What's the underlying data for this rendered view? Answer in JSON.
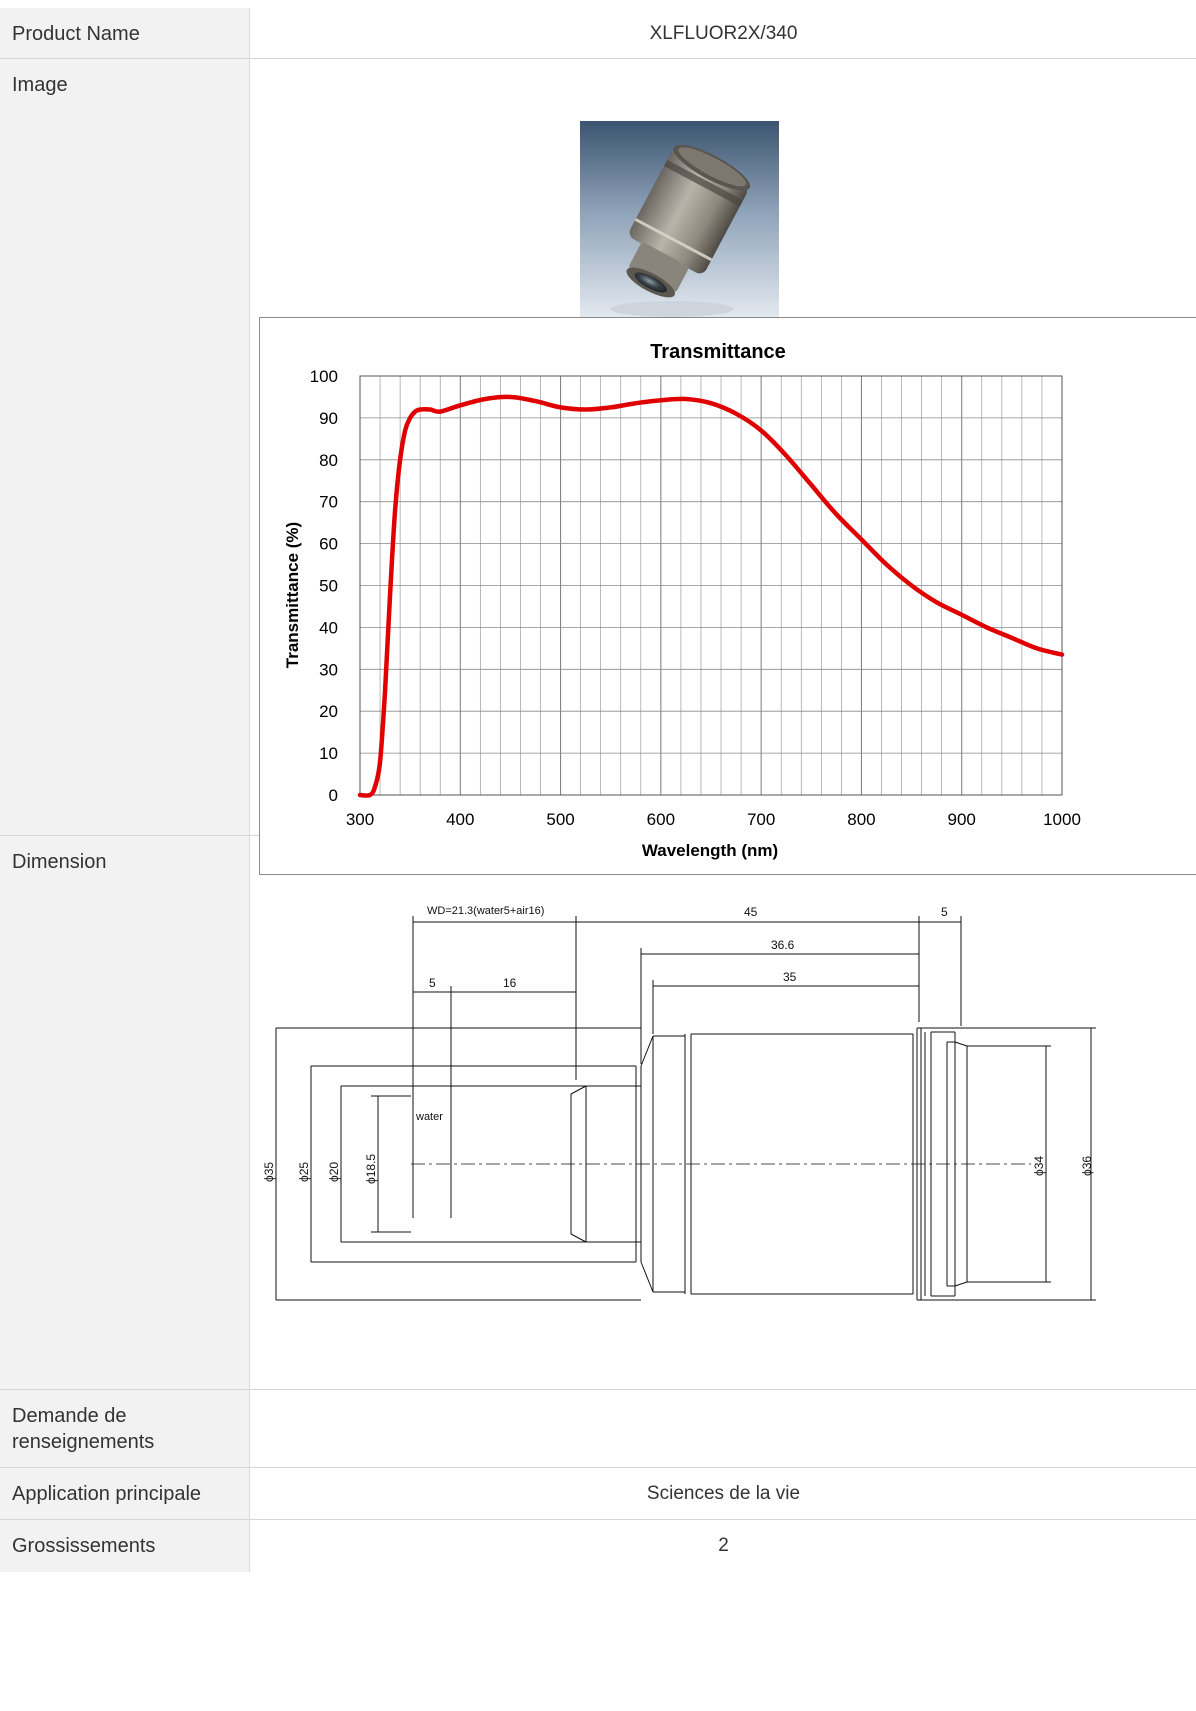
{
  "rows": {
    "product_name": {
      "label": "Product Name",
      "value": "XLFLUOR2X/340"
    },
    "image": {
      "label": "Image"
    },
    "dimension": {
      "label": "Dimension"
    },
    "inquiry": {
      "label": "Demande de\nrenseignements",
      "value": ""
    },
    "application": {
      "label": "Application principale",
      "value": "Sciences de la vie"
    },
    "magnification": {
      "label": "Grossissements",
      "value": "2"
    }
  },
  "chart_data": {
    "type": "line",
    "title": "Transmittance",
    "xlabel": "Wavelength (nm)",
    "ylabel": "Transmittance (%)",
    "xlim": [
      300,
      1000
    ],
    "ylim": [
      0,
      100
    ],
    "x_ticks": [
      "300",
      "400",
      "500",
      "600",
      "700",
      "800",
      "900",
      "1000"
    ],
    "y_ticks": [
      "0",
      "10",
      "20",
      "30",
      "40",
      "50",
      "60",
      "70",
      "80",
      "90",
      "100"
    ],
    "grid": true,
    "series_color": "#e00000",
    "x": [
      300,
      310,
      315,
      320,
      325,
      330,
      335,
      340,
      345,
      350,
      355,
      360,
      370,
      380,
      400,
      425,
      450,
      475,
      500,
      525,
      550,
      575,
      600,
      625,
      650,
      675,
      700,
      725,
      750,
      775,
      800,
      825,
      850,
      875,
      900,
      925,
      950,
      975,
      1000
    ],
    "y": [
      0,
      0,
      2,
      8,
      25,
      48,
      68,
      80,
      87,
      90,
      91.5,
      92,
      92,
      91.5,
      93,
      94.5,
      95,
      94,
      92.5,
      92,
      92.5,
      93.5,
      94.2,
      94.5,
      93.5,
      91,
      87,
      81,
      74,
      67,
      61,
      55,
      50,
      46,
      43,
      40,
      37.5,
      35,
      33.5
    ]
  },
  "dimension_drawing": {
    "wd_label": "WD=21.3(water5+air16)",
    "d45": "45",
    "d5_right": "5",
    "d36_6": "36.6",
    "d35_len": "35",
    "d5_left": "5",
    "d16": "16",
    "water": "water",
    "phi35": "ϕ35",
    "phi25": "ϕ25",
    "phi20": "ϕ20",
    "phi18_5": "ϕ18.5",
    "phi34": "ϕ34",
    "phi36": "ϕ36"
  }
}
